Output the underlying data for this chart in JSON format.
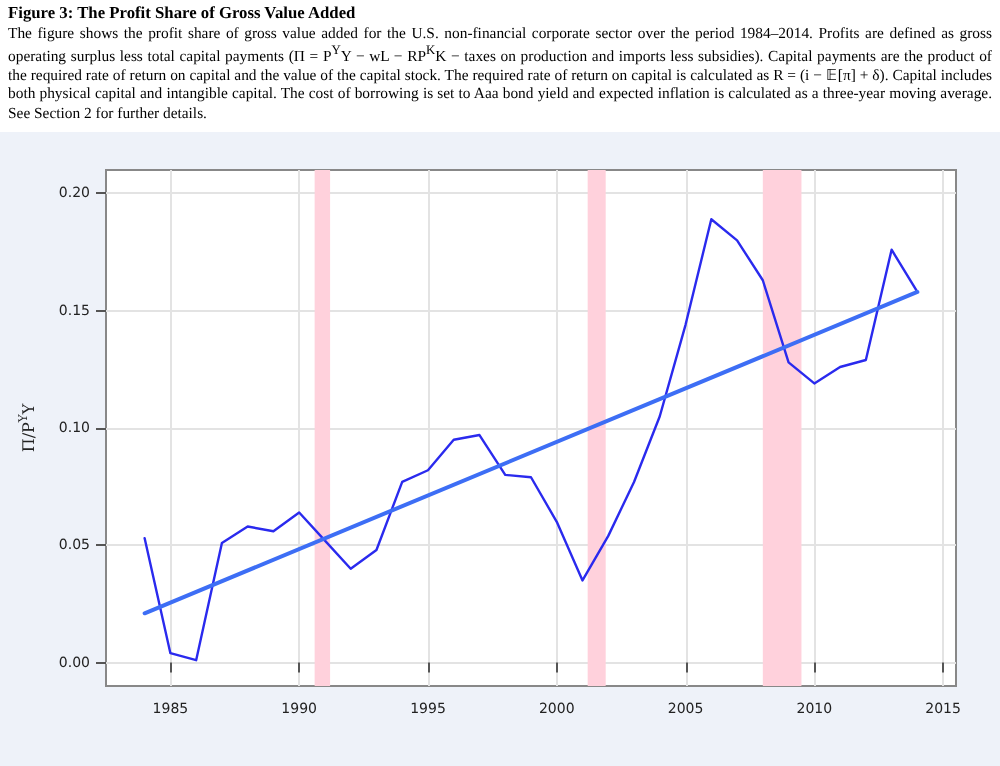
{
  "chart_data": {
    "type": "line",
    "title": "Figure 3: The Profit Share of Gross Value Added",
    "subtitle": "The figure shows the profit share of gross value added for the U.S. non-financial corporate sector over the period 1984–2014. Profits are defined as gross operating surplus less total capital payments (Π = P$^{Y}$Y − wL − RP$^{K}$K − taxes on production and imports less subsidies). Capital payments are the product of the required rate of return on capital and the value of the capital stock. The required rate of return on capital is calculated as R = (i − 𝔼[π] + δ). Capital includes both physical capital and intangible capital. The cost of borrowing is set to Aaa bond yield and expected inflation is calculated as a three-year moving average. See Section 2 for further details.",
    "ylabel": "Π/P$^{Y}$Y",
    "x": [
      1984,
      1985,
      1986,
      1987,
      1988,
      1989,
      1990,
      1991,
      1992,
      1993,
      1994,
      1995,
      1996,
      1997,
      1998,
      1999,
      2000,
      2001,
      2002,
      2003,
      2004,
      2005,
      2006,
      2007,
      2008,
      2009,
      2010,
      2011,
      2012,
      2013,
      2014
    ],
    "series": [
      {
        "color": "#2a2aee",
        "values": [
          0.053,
          0.004,
          0.001,
          0.051,
          0.058,
          0.056,
          0.064,
          0.052,
          0.04,
          0.048,
          0.077,
          0.082,
          0.095,
          0.097,
          0.08,
          0.079,
          0.06,
          0.035,
          0.054,
          0.077,
          0.105,
          0.144,
          0.189,
          0.18,
          0.163,
          0.128,
          0.119,
          0.126,
          0.129,
          0.176,
          0.158
        ]
      },
      {
        "type": "line",
        "color": "#3d6ef5",
        "x": [
          1984,
          2014
        ],
        "values": [
          0.021,
          0.158
        ]
      }
    ],
    "bands": [
      {
        "axis": "x",
        "from": 1990.6,
        "to": 1991.2,
        "color": "#ffd1dc"
      },
      {
        "axis": "x",
        "from": 2001.2,
        "to": 2001.9,
        "color": "#ffd1dc"
      },
      {
        "axis": "x",
        "from": 2008.0,
        "to": 2009.5,
        "color": "#ffd1dc"
      }
    ],
    "xlim": [
      1982.5,
      2015.5
    ],
    "xticks": [
      1985,
      1990,
      1995,
      2000,
      2005,
      2010,
      2015
    ],
    "ylim": [
      -0.01,
      0.21
    ],
    "yticks": [
      {
        "value": 0,
        "label": "0.00"
      },
      {
        "value": 0.05,
        "label": "0.05"
      },
      {
        "value": 0.1,
        "label": "0.10"
      },
      {
        "value": 0.15,
        "label": "0.15"
      },
      {
        "value": 0.2,
        "label": "0.20"
      }
    ],
    "grid": true,
    "marker": "none",
    "line_style": "solid"
  }
}
